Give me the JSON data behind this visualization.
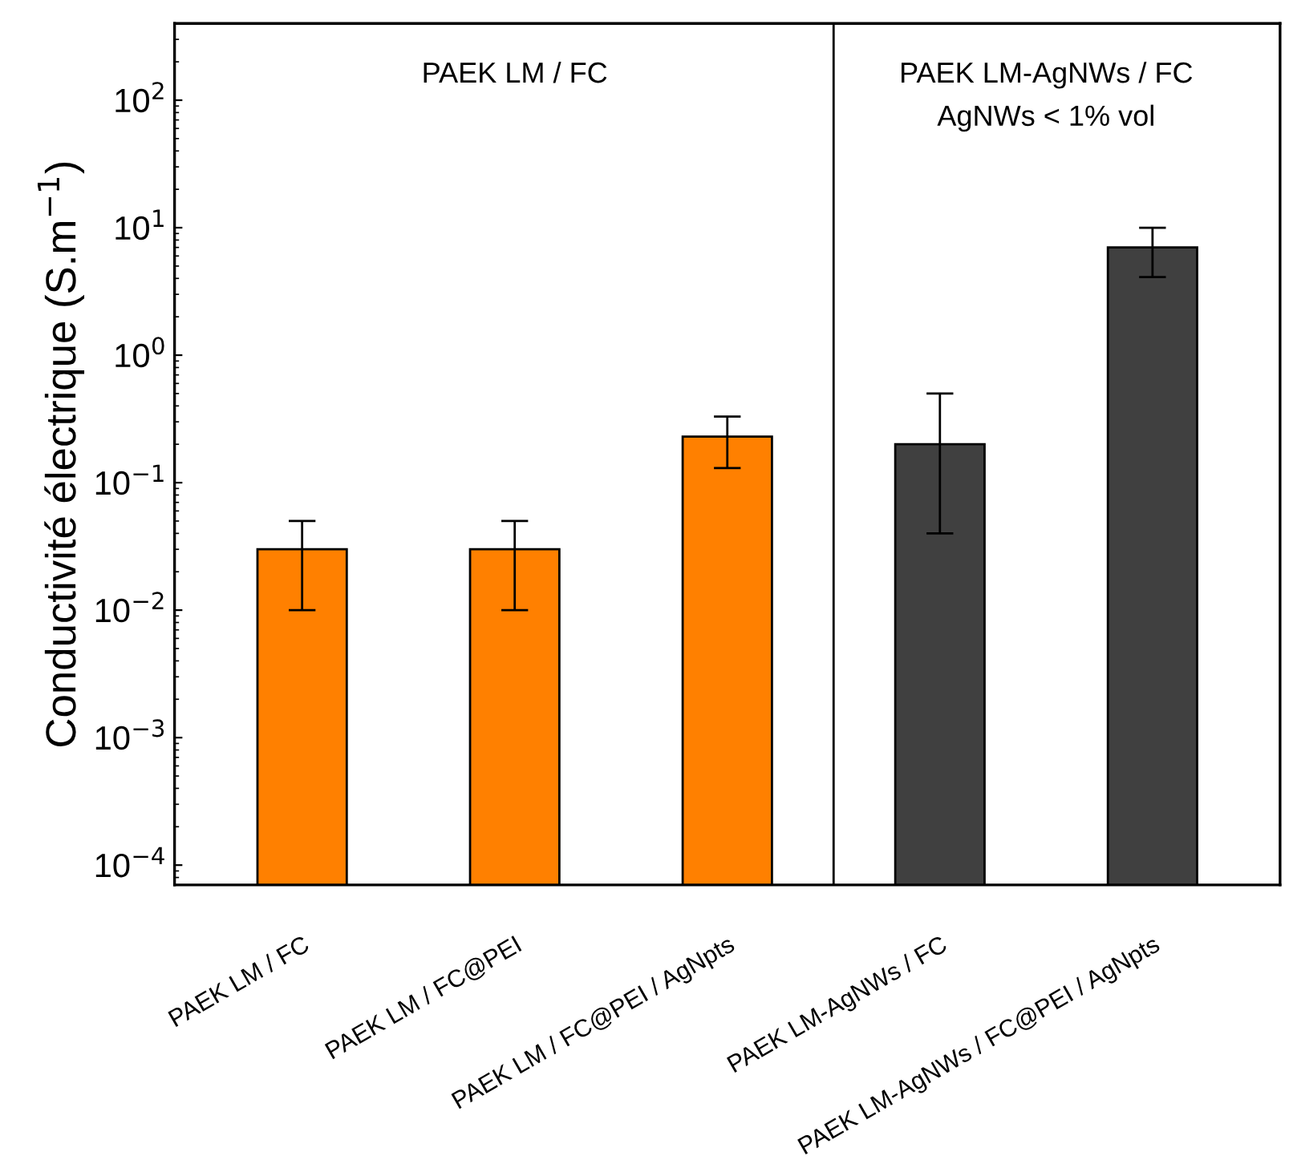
{
  "chart_data": {
    "type": "bar",
    "categories": [
      "PAEK LM / FC",
      "PAEK LM / FC@PEI",
      "PAEK LM / FC@PEI / AgNpts",
      "PAEK LM-AgNWs / FC",
      "PAEK LM-AgNWs / FC@PEI / AgNpts"
    ],
    "values": [
      0.03,
      0.03,
      0.23,
      0.2,
      7.0
    ],
    "colors": [
      "#ff8000",
      "#ff8000",
      "#ff8000",
      "#404040",
      "#404040"
    ],
    "errors": [
      [
        0.01,
        0.05
      ],
      [
        0.01,
        0.05
      ],
      [
        0.13,
        0.33
      ],
      [
        0.04,
        0.5
      ],
      [
        4.1,
        10
      ]
    ],
    "ylabel": "Conductivité électrique (S.m$^{−1}$)",
    "log": true,
    "ylim": [
      7e-05,
      400
    ],
    "yticks": [
      {
        "value": 0.0001,
        "label": "10$^{−4}$"
      },
      {
        "value": 0.001,
        "label": "10$^{−3}$"
      },
      {
        "value": 0.01,
        "label": "10$^{−2}$"
      },
      {
        "value": 0.1,
        "label": "10$^{−1}$"
      },
      {
        "value": 1,
        "label": "10$^{0}$"
      },
      {
        "value": 10,
        "label": "10$^{1}$"
      },
      {
        "value": 100,
        "label": "10$^{2}$"
      }
    ],
    "annotations": [
      "PAEK LM / FC",
      "PAEK LM-AgNWs / FC",
      "AgNWs < 1% vol"
    ],
    "grid": false,
    "legend": false
  }
}
